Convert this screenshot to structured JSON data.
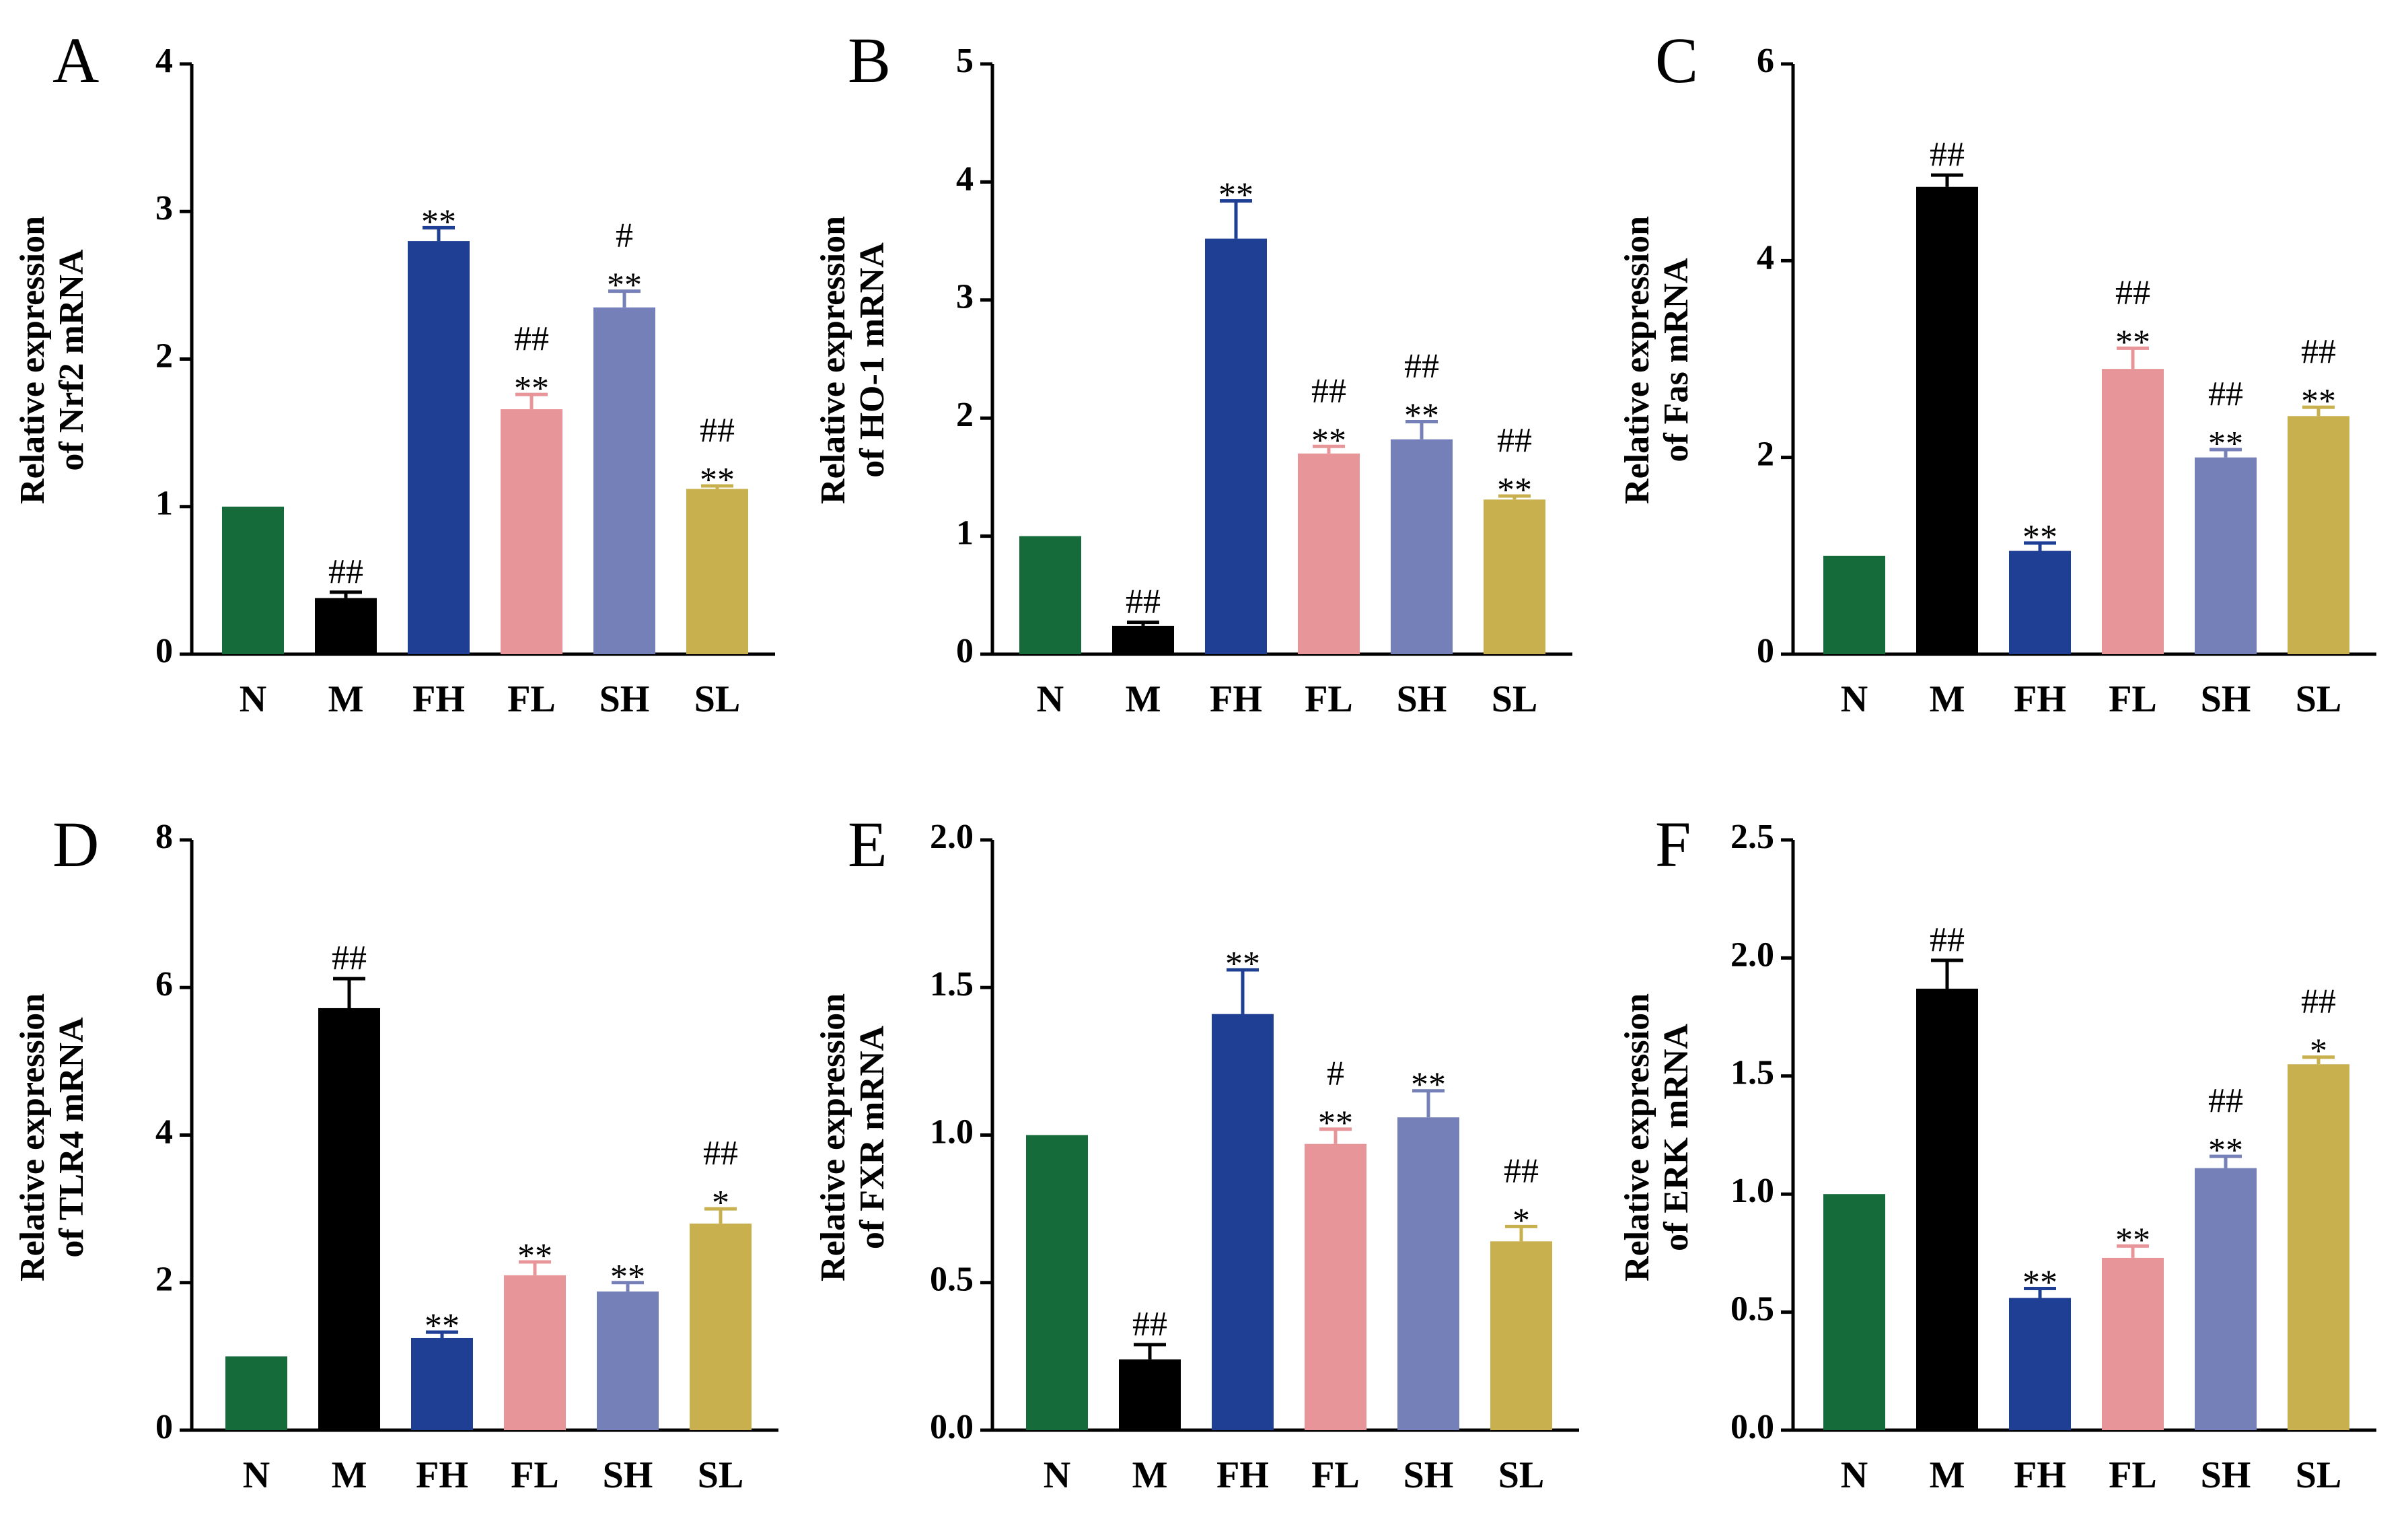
{
  "figure": {
    "categories": [
      "N",
      "M",
      "FH",
      "FL",
      "SH",
      "SL"
    ],
    "colors": {
      "N": "#166B3B",
      "M": "#000000",
      "FH": "#1E3F93",
      "FL": "#E8959A",
      "SH": "#7680B8",
      "SL": "#C8B04E"
    }
  },
  "chart_data": [
    {
      "panel": "A",
      "type": "bar",
      "ylabel_line1": "Relative expression",
      "ylabel_line2": "of Nrf2 mRNA",
      "ylim": [
        0,
        4
      ],
      "yticks": [
        0,
        1,
        2,
        3,
        4
      ],
      "tick_labels": [
        "0",
        "1",
        "2",
        "3",
        "4"
      ],
      "categories": [
        "N",
        "M",
        "FH",
        "FL",
        "SH",
        "SL"
      ],
      "values": [
        1.0,
        0.38,
        2.8,
        1.66,
        2.35,
        1.12
      ],
      "errors": [
        0,
        0.04,
        0.09,
        0.1,
        0.11,
        0.02
      ],
      "annotations": [
        [],
        [
          "##"
        ],
        [
          "**"
        ],
        [
          "##",
          "**"
        ],
        [
          "#",
          "**"
        ],
        [
          "##",
          "**"
        ]
      ]
    },
    {
      "panel": "B",
      "type": "bar",
      "ylabel_line1": "Relative expression",
      "ylabel_line2": "of HO-1 mRNA",
      "ylim": [
        0,
        5
      ],
      "yticks": [
        0,
        1,
        2,
        3,
        4,
        5
      ],
      "tick_labels": [
        "0",
        "1",
        "2",
        "3",
        "4",
        "5"
      ],
      "categories": [
        "N",
        "M",
        "FH",
        "FL",
        "SH",
        "SL"
      ],
      "values": [
        1.0,
        0.24,
        3.52,
        1.7,
        1.82,
        1.31
      ],
      "errors": [
        0,
        0.03,
        0.32,
        0.06,
        0.15,
        0.03
      ],
      "annotations": [
        [],
        [
          "##"
        ],
        [
          "**"
        ],
        [
          "##",
          "**"
        ],
        [
          "##",
          "**"
        ],
        [
          "##",
          "**"
        ]
      ]
    },
    {
      "panel": "C",
      "type": "bar",
      "ylabel_line1": "Relative expression",
      "ylabel_line2": "of Fas mRNA",
      "ylim": [
        0,
        6
      ],
      "yticks": [
        0,
        2,
        4,
        6
      ],
      "tick_labels": [
        "0",
        "2",
        "4",
        "6"
      ],
      "categories": [
        "N",
        "M",
        "FH",
        "FL",
        "SH",
        "SL"
      ],
      "values": [
        1.0,
        4.75,
        1.05,
        2.9,
        2.0,
        2.42
      ],
      "errors": [
        0,
        0.12,
        0.08,
        0.21,
        0.08,
        0.09
      ],
      "annotations": [
        [],
        [
          "##"
        ],
        [
          "**"
        ],
        [
          "##",
          "**"
        ],
        [
          "##",
          "**"
        ],
        [
          "##",
          "**"
        ]
      ]
    },
    {
      "panel": "D",
      "type": "bar",
      "ylabel_line1": "Relative expression",
      "ylabel_line2": "of TLR4 mRNA",
      "ylim": [
        0,
        8
      ],
      "yticks": [
        0,
        2,
        4,
        6,
        8
      ],
      "tick_labels": [
        "0",
        "2",
        "4",
        "6",
        "8"
      ],
      "categories": [
        "N",
        "M",
        "FH",
        "FL",
        "SH",
        "SL"
      ],
      "values": [
        1.0,
        5.72,
        1.25,
        2.1,
        1.88,
        2.8
      ],
      "errors": [
        0,
        0.4,
        0.08,
        0.18,
        0.12,
        0.2
      ],
      "annotations": [
        [],
        [
          "##"
        ],
        [
          "**"
        ],
        [
          "**"
        ],
        [
          "**"
        ],
        [
          "##",
          "*"
        ]
      ]
    },
    {
      "panel": "E",
      "type": "bar",
      "ylabel_line1": "Relative expression",
      "ylabel_line2": "of FXR mRNA",
      "ylim": [
        0,
        2.0
      ],
      "yticks": [
        0,
        0.5,
        1.0,
        1.5,
        2.0
      ],
      "tick_labels": [
        "0.0",
        "0.5",
        "1.0",
        "1.5",
        "2.0"
      ],
      "categories": [
        "N",
        "M",
        "FH",
        "FL",
        "SH",
        "SL"
      ],
      "values": [
        1.0,
        0.24,
        1.41,
        0.97,
        1.06,
        0.64
      ],
      "errors": [
        0,
        0.05,
        0.15,
        0.05,
        0.09,
        0.05
      ],
      "annotations": [
        [],
        [
          "##"
        ],
        [
          "**"
        ],
        [
          "#",
          "**"
        ],
        [
          "**"
        ],
        [
          "##",
          "*"
        ]
      ]
    },
    {
      "panel": "F",
      "type": "bar",
      "ylabel_line1": "Relative expression",
      "ylabel_line2": "of ERK mRNA",
      "ylim": [
        0,
        2.5
      ],
      "yticks": [
        0,
        0.5,
        1.0,
        1.5,
        2.0,
        2.5
      ],
      "tick_labels": [
        "0.0",
        "0.5",
        "1.0",
        "1.5",
        "2.0",
        "2.5"
      ],
      "categories": [
        "N",
        "M",
        "FH",
        "FL",
        "SH",
        "SL"
      ],
      "values": [
        1.0,
        1.87,
        0.56,
        0.73,
        1.11,
        1.55
      ],
      "errors": [
        0,
        0.12,
        0.04,
        0.05,
        0.05,
        0.03
      ],
      "annotations": [
        [],
        [
          "##"
        ],
        [
          "**"
        ],
        [
          "**"
        ],
        [
          "##",
          "**"
        ],
        [
          "##",
          "*"
        ]
      ]
    }
  ]
}
